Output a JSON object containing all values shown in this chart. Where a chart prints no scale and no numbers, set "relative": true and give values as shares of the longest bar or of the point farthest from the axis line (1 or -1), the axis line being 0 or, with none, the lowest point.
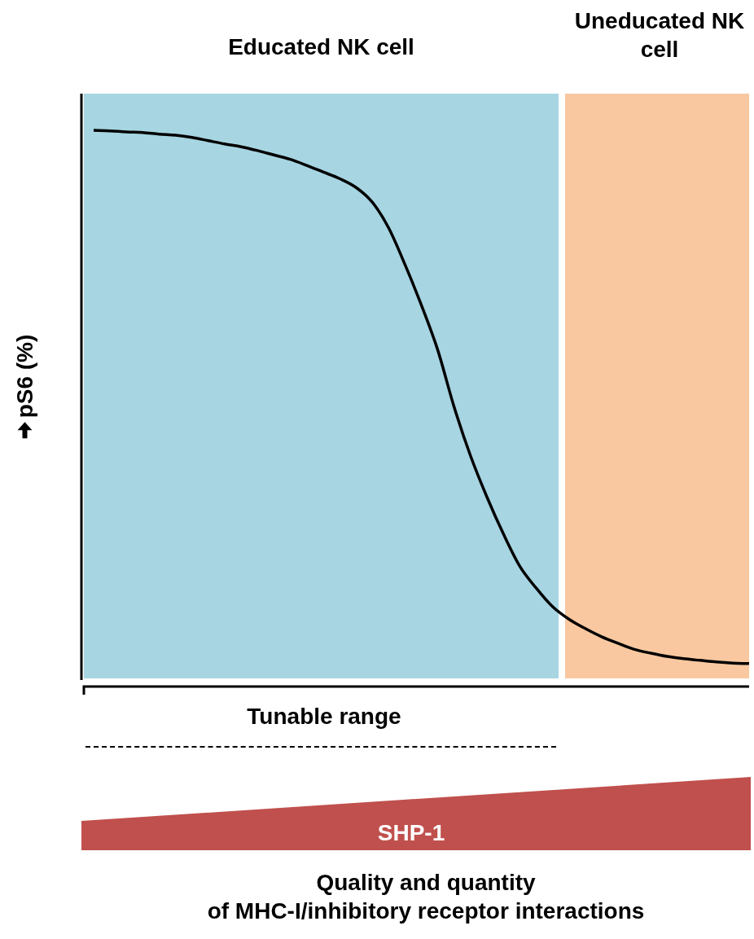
{
  "chart_data": {
    "type": "line",
    "relative": true,
    "ylabel": "pS6 (%)",
    "tick_labels": false,
    "legend": false,
    "marker": "none",
    "line_style": "solid",
    "categories": [
      null,
      null,
      null,
      null,
      null,
      null,
      null,
      null,
      null,
      null,
      null,
      null,
      null,
      null,
      null,
      null,
      null,
      null,
      null,
      null,
      null,
      null,
      null,
      null,
      null,
      null,
      null,
      null,
      null,
      null,
      null,
      null,
      null,
      null,
      null,
      null,
      null,
      null,
      null,
      null,
      null
    ],
    "annotations": [
      "Educated NK cell",
      "Uneducated NK cell",
      "Tunable range",
      "SHP-1",
      "Quality and quantity\nof MHC-I/inhibitory receptor interactions"
    ],
    "series": [
      {
        "color": "#000000",
        "values": [
          1.0,
          0.999,
          0.997,
          0.996,
          0.993,
          0.991,
          0.987,
          0.981,
          0.975,
          0.97,
          0.963,
          0.955,
          0.947,
          0.936,
          0.924,
          0.912,
          0.896,
          0.869,
          0.822,
          0.755,
          0.681,
          0.599,
          0.495,
          0.406,
          0.331,
          0.264,
          0.205,
          0.165,
          0.131,
          0.108,
          0.091,
          0.076,
          0.064,
          0.053,
          0.046,
          0.04,
          0.036,
          0.033,
          0.03,
          0.028,
          0.027
        ]
      }
    ]
  }
}
